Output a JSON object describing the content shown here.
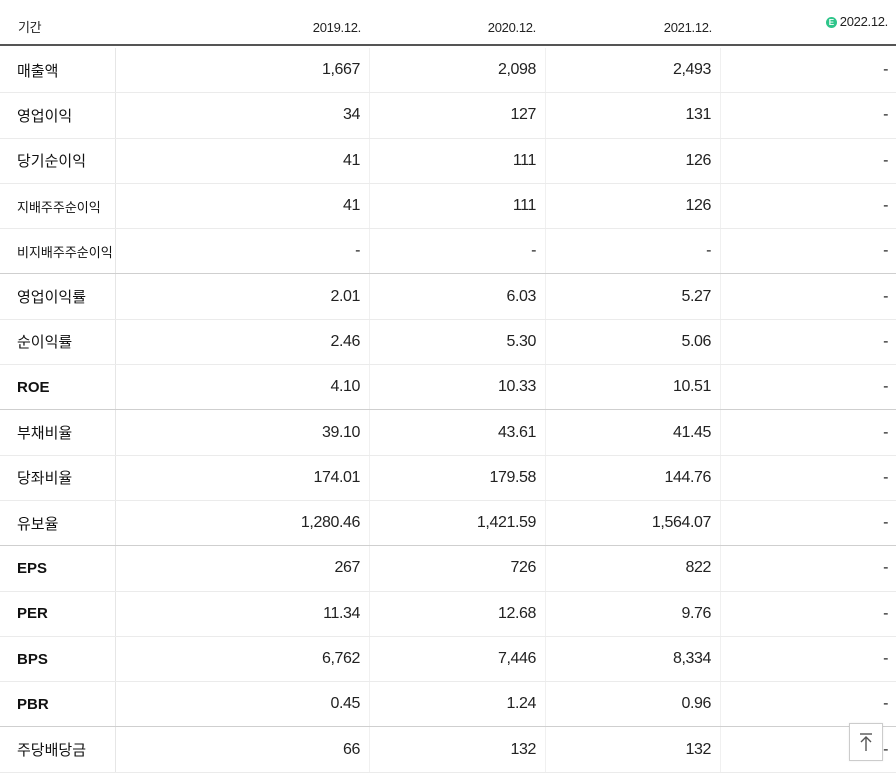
{
  "header": {
    "period_label": "기간",
    "columns": [
      "2019.12.",
      "2020.12.",
      "2021.12.",
      "2022.12."
    ],
    "estimate_badge": "E"
  },
  "rows": [
    {
      "label": "매출액",
      "values": [
        "1,667",
        "2,098",
        "2,493",
        "-"
      ]
    },
    {
      "label": "영업이익",
      "values": [
        "34",
        "127",
        "131",
        "-"
      ]
    },
    {
      "label": "당기순이익",
      "values": [
        "41",
        "111",
        "126",
        "-"
      ]
    },
    {
      "label": "지배주주순이익",
      "values": [
        "41",
        "111",
        "126",
        "-"
      ]
    },
    {
      "label": "비지배주주순이익",
      "values": [
        "-",
        "-",
        "-",
        "-"
      ]
    },
    {
      "label": "영업이익률",
      "values": [
        "2.01",
        "6.03",
        "5.27",
        "-"
      ]
    },
    {
      "label": "순이익률",
      "values": [
        "2.46",
        "5.30",
        "5.06",
        "-"
      ]
    },
    {
      "label": "ROE",
      "values": [
        "4.10",
        "10.33",
        "10.51",
        "-"
      ]
    },
    {
      "label": "부채비율",
      "values": [
        "39.10",
        "43.61",
        "41.45",
        "-"
      ]
    },
    {
      "label": "당좌비율",
      "values": [
        "174.01",
        "179.58",
        "144.76",
        "-"
      ]
    },
    {
      "label": "유보율",
      "values": [
        "1,280.46",
        "1,421.59",
        "1,564.07",
        "-"
      ]
    },
    {
      "label": "EPS",
      "values": [
        "267",
        "726",
        "822",
        "-"
      ]
    },
    {
      "label": "PER",
      "values": [
        "11.34",
        "12.68",
        "9.76",
        "-"
      ]
    },
    {
      "label": "BPS",
      "values": [
        "6,762",
        "7,446",
        "8,334",
        "-"
      ]
    },
    {
      "label": "PBR",
      "values": [
        "0.45",
        "1.24",
        "0.96",
        "-"
      ]
    },
    {
      "label": "주당배당금",
      "values": [
        "66",
        "132",
        "132",
        "-"
      ]
    }
  ],
  "scroll_top_icon": "arrow-up-to-top-icon",
  "colors": {
    "estimate_badge": "#2ec58a",
    "header_rule": "#555555"
  }
}
